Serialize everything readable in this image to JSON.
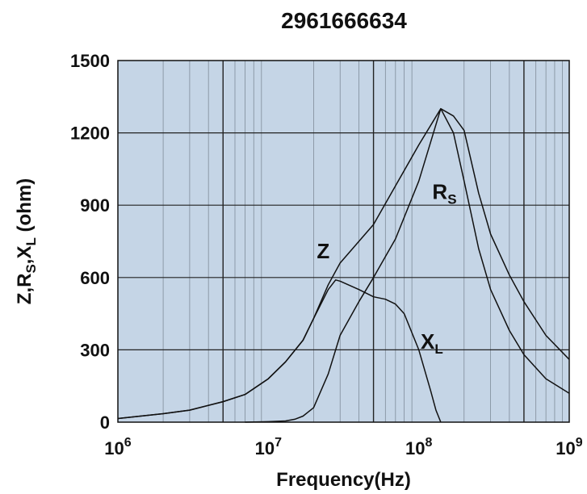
{
  "chart_data": {
    "type": "line",
    "title": "2961666634",
    "xlabel": "Frequency(Hz)",
    "ylabel": {
      "main": "Z,R",
      "sub1": "S",
      "mid": ",X",
      "sub2": "L",
      "unit": " (ohm)"
    },
    "x_scale": "log",
    "xlim": [
      1000000,
      1000000000
    ],
    "ylim": [
      0,
      1500
    ],
    "x_tick_labels": [
      {
        "base": "10",
        "exp": "6"
      },
      {
        "base": "10",
        "exp": "7"
      },
      {
        "base": "10",
        "exp": "8"
      },
      {
        "base": "10",
        "exp": "9"
      }
    ],
    "y_ticks": [
      0,
      300,
      600,
      900,
      1200,
      1500
    ],
    "y_tick_labels": [
      "0",
      "300",
      "600",
      "900",
      "1200",
      "1500"
    ],
    "grid": true,
    "colors": {
      "plot_bg": "#c5d5e6",
      "grid": "#7f8c99",
      "line": "#111111"
    },
    "series": [
      {
        "name": "Z",
        "label": {
          "main": "Z",
          "sub": ""
        },
        "x": [
          1000000,
          2000000,
          3000000,
          5000000,
          7000000,
          10000000,
          13000000,
          17000000,
          20000000,
          25000000,
          30000000,
          40000000,
          50000000,
          70000000,
          100000000,
          140000000,
          170000000,
          200000000,
          250000000,
          300000000,
          400000000,
          500000000,
          700000000,
          1000000000
        ],
        "y": [
          15,
          35,
          50,
          85,
          115,
          180,
          250,
          340,
          430,
          570,
          660,
          750,
          820,
          980,
          1150,
          1300,
          1270,
          1210,
          950,
          780,
          610,
          500,
          360,
          260
        ]
      },
      {
        "name": "Rs",
        "label": {
          "main": "R",
          "sub": "S"
        },
        "x": [
          7000000,
          10000000,
          13000000,
          15000000,
          17000000,
          20000000,
          25000000,
          30000000,
          40000000,
          50000000,
          70000000,
          100000000,
          140000000,
          170000000,
          200000000,
          250000000,
          300000000,
          400000000,
          500000000,
          700000000,
          1000000000
        ],
        "y": [
          0,
          2,
          5,
          12,
          25,
          60,
          200,
          360,
          500,
          600,
          760,
          1000,
          1300,
          1200,
          1000,
          720,
          550,
          380,
          280,
          180,
          120
        ]
      },
      {
        "name": "XL",
        "label": {
          "main": "X",
          "sub": "L"
        },
        "x": [
          1000000,
          2000000,
          3000000,
          5000000,
          7000000,
          10000000,
          13000000,
          17000000,
          20000000,
          25000000,
          28000000,
          30000000,
          40000000,
          50000000,
          60000000,
          70000000,
          80000000,
          100000000,
          120000000,
          130000000,
          140000000
        ],
        "y": [
          15,
          35,
          50,
          85,
          115,
          180,
          250,
          340,
          430,
          550,
          590,
          585,
          550,
          520,
          510,
          490,
          450,
          300,
          130,
          50,
          0
        ]
      }
    ]
  }
}
